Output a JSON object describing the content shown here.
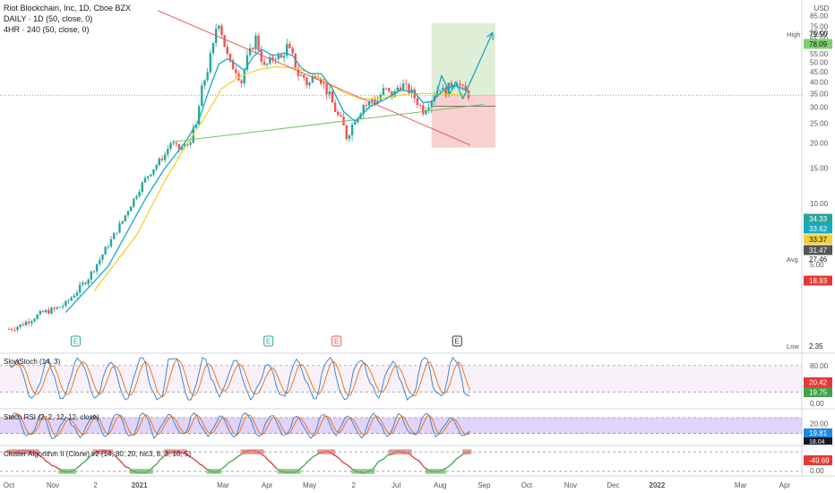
{
  "header": {
    "title": "Riot Blockchain, Inc, 1D, Cboe BZX",
    "ma_daily": "DAILY · 1D (50, close, 0)",
    "ma_4hr": "4HR · 240 (50, close, 0)"
  },
  "currency": "USD",
  "colors": {
    "up": "#26a69a",
    "down": "#ef5350",
    "ma_daily": "#f2d230",
    "ma_4hr": "#17a9c4",
    "resistance": "#e35050",
    "support": "#66bb55",
    "arrow": "#17a9c4",
    "target_zone": "#d9ecd0",
    "stop_zone": "#f8c8c8",
    "stoch_k": "#2a7fd0",
    "stoch_d": "#ef6c00",
    "cluster_up": "#2e9e3a",
    "cluster_down": "#d72a2a"
  },
  "chart_data": [
    {
      "type": "candlestick",
      "title": "Riot Blockchain, Inc, 1D, Cboe BZX",
      "ylabel": "USD",
      "y_ticks": [
        5,
        10,
        15,
        20,
        25,
        30,
        35,
        40,
        45,
        50,
        55,
        60,
        65,
        70,
        75,
        85
      ],
      "x_tick_labels": [
        "Oct",
        "Nov",
        "2",
        "2021",
        "Mar",
        "Apr",
        "May",
        "2",
        "Jul",
        "Aug",
        "Sep",
        "Oct",
        "Nov",
        "Dec",
        "2022",
        "Mar",
        "Apr"
      ],
      "x_ticks_day": [
        0,
        31,
        61,
        92,
        151,
        182,
        212,
        243,
        273,
        304,
        335,
        365,
        396,
        426,
        457,
        516,
        547
      ],
      "ylim": [
        2,
        88
      ],
      "price_labels": [
        {
          "text": "High",
          "value": "79.50"
        },
        {
          "text": "",
          "value": "78.09"
        },
        {
          "text": "",
          "value": "34.33"
        },
        {
          "text": "",
          "value": "33.62"
        },
        {
          "text": "",
          "value": "33.37"
        },
        {
          "text": "",
          "value": "31.47"
        },
        {
          "text": "Avg",
          "value": "27.46"
        },
        {
          "text": "",
          "value": "18.93"
        },
        {
          "text": "Low",
          "value": "2.35"
        }
      ],
      "series_close": [
        [
          0,
          2.4
        ],
        [
          8,
          2.5
        ],
        [
          16,
          2.7
        ],
        [
          24,
          2.9
        ],
        [
          32,
          3.0
        ],
        [
          40,
          3.2
        ],
        [
          48,
          3.7
        ],
        [
          56,
          4.3
        ],
        [
          64,
          5.3
        ],
        [
          72,
          6.6
        ],
        [
          80,
          8.2
        ],
        [
          88,
          10.5
        ],
        [
          96,
          13.2
        ],
        [
          104,
          15.6
        ],
        [
          110,
          17.5
        ],
        [
          114,
          20.0
        ],
        [
          120,
          18.6
        ],
        [
          126,
          19.6
        ],
        [
          132,
          24.0
        ],
        [
          136,
          36.5
        ],
        [
          140,
          46.0
        ],
        [
          144,
          60.0
        ],
        [
          146,
          74.0
        ],
        [
          148,
          79.5
        ],
        [
          150,
          70.0
        ],
        [
          153,
          56.0
        ],
        [
          156,
          49.0
        ],
        [
          160,
          46.0
        ],
        [
          164,
          40.0
        ],
        [
          168,
          52.0
        ],
        [
          171,
          58.0
        ],
        [
          174,
          66.0
        ],
        [
          177,
          55.0
        ],
        [
          180,
          47.0
        ],
        [
          184,
          50.5
        ],
        [
          188,
          54.0
        ],
        [
          192,
          52.0
        ],
        [
          196,
          60.0
        ],
        [
          200,
          53.0
        ],
        [
          204,
          43.5
        ],
        [
          208,
          42.0
        ],
        [
          211,
          38.0
        ],
        [
          214,
          42.0
        ],
        [
          217,
          45.5
        ],
        [
          220,
          41.0
        ],
        [
          223,
          37.0
        ],
        [
          226,
          34.0
        ],
        [
          229,
          30.0
        ],
        [
          232,
          27.0
        ],
        [
          235,
          25.0
        ],
        [
          238,
          21.5
        ],
        [
          241,
          23.5
        ],
        [
          244,
          26.5
        ],
        [
          247,
          28.0
        ],
        [
          250,
          31.0
        ],
        [
          253,
          30.5
        ],
        [
          256,
          33.0
        ],
        [
          259,
          31.5
        ],
        [
          262,
          34.5
        ],
        [
          265,
          37.0
        ],
        [
          268,
          35.0
        ],
        [
          271,
          34.0
        ],
        [
          274,
          37.5
        ],
        [
          277,
          39.0
        ],
        [
          280,
          37.0
        ],
        [
          283,
          36.0
        ],
        [
          286,
          33.5
        ],
        [
          289,
          31.0
        ],
        [
          292,
          29.0
        ],
        [
          295,
          31.0
        ],
        [
          298,
          33.0
        ],
        [
          301,
          36.0
        ],
        [
          304,
          38.0
        ],
        [
          307,
          35.0
        ],
        [
          310,
          37.5
        ],
        [
          313,
          39.5
        ],
        [
          316,
          41.0
        ],
        [
          319,
          37.0
        ],
        [
          322,
          35.5
        ],
        [
          325,
          34.3
        ]
      ],
      "ma_daily_close": [
        [
          60,
          3.7
        ],
        [
          90,
          7.0
        ],
        [
          110,
          13.0
        ],
        [
          125,
          19.5
        ],
        [
          137,
          26.0
        ],
        [
          150,
          37.0
        ],
        [
          163,
          42.5
        ],
        [
          176,
          46.0
        ],
        [
          188,
          47.5
        ],
        [
          200,
          47.0
        ],
        [
          212,
          44.5
        ],
        [
          224,
          40.0
        ],
        [
          236,
          35.5
        ],
        [
          248,
          33.0
        ],
        [
          260,
          33.0
        ],
        [
          272,
          34.0
        ],
        [
          284,
          35.0
        ],
        [
          296,
          35.0
        ],
        [
          308,
          34.5
        ],
        [
          320,
          34.8
        ],
        [
          325,
          35.0
        ]
      ],
      "ma_4hr_close": [
        [
          40,
          2.9
        ],
        [
          70,
          4.9
        ],
        [
          96,
          10.5
        ],
        [
          110,
          15.0
        ],
        [
          124,
          20.0
        ],
        [
          134,
          26.0
        ],
        [
          142,
          38.0
        ],
        [
          148,
          49.0
        ],
        [
          154,
          52.0
        ],
        [
          160,
          49.0
        ],
        [
          166,
          45.5
        ],
        [
          172,
          53.0
        ],
        [
          178,
          58.0
        ],
        [
          186,
          54.0
        ],
        [
          194,
          55.5
        ],
        [
          200,
          54.0
        ],
        [
          206,
          47.0
        ],
        [
          212,
          44.0
        ],
        [
          220,
          44.0
        ],
        [
          228,
          37.0
        ],
        [
          236,
          28.5
        ],
        [
          244,
          25.5
        ],
        [
          254,
          30.0
        ],
        [
          266,
          33.0
        ],
        [
          276,
          36.5
        ],
        [
          286,
          35.5
        ],
        [
          292,
          31.5
        ],
        [
          298,
          32.0
        ],
        [
          306,
          36.0
        ],
        [
          314,
          38.5
        ],
        [
          320,
          37.0
        ],
        [
          325,
          35.5
        ]
      ],
      "resistance_line": [
        [
          105,
          90
        ],
        [
          325,
          19.5
        ]
      ],
      "support_line": [
        [
          115,
          20.2
        ],
        [
          335,
          31.0
        ]
      ],
      "target_zone": {
        "start": 298,
        "end": 343,
        "entry": 34.3,
        "target": 78.09,
        "stop": 18.93
      },
      "projection_arrow": [
        [
          301,
          33.5
        ],
        [
          305,
          43.0
        ],
        [
          311,
          35.0
        ],
        [
          315,
          40.0
        ],
        [
          320,
          33.0
        ],
        [
          341,
          70.0
        ]
      ],
      "earnings_markers": [
        {
          "day": 47,
          "label": "E",
          "kind": "up"
        },
        {
          "day": 183,
          "label": "E",
          "kind": "up"
        },
        {
          "day": 231,
          "label": "E",
          "kind": "down"
        },
        {
          "day": 316,
          "label": "E",
          "kind": "neutral"
        }
      ]
    },
    {
      "type": "line",
      "title": "SlowStoch (14, 3)",
      "ylim": [
        -10,
        100
      ],
      "y_ticks": [
        0.0,
        80.0
      ],
      "levels": [
        20,
        80
      ],
      "latest": [
        "20.42",
        "19.75"
      ]
    },
    {
      "type": "line",
      "title": "Stoch RSI (2, 2, 12, 12, close)",
      "ylim": [
        -15,
        100
      ],
      "y_ticks": [
        0.0,
        20.0
      ],
      "levels": [
        20,
        80
      ],
      "latest": [
        "19.81",
        "18.04"
      ]
    },
    {
      "type": "line",
      "title": "Cluster Algorithm II (Clone) v2 (14, 80, 20, hlc3, 8, 3, 10, 5)",
      "ylim": [
        -110,
        110
      ],
      "y_ticks": [
        0.0
      ],
      "levels": [
        80,
        -80
      ],
      "latest": [
        "-49.69"
      ]
    }
  ]
}
